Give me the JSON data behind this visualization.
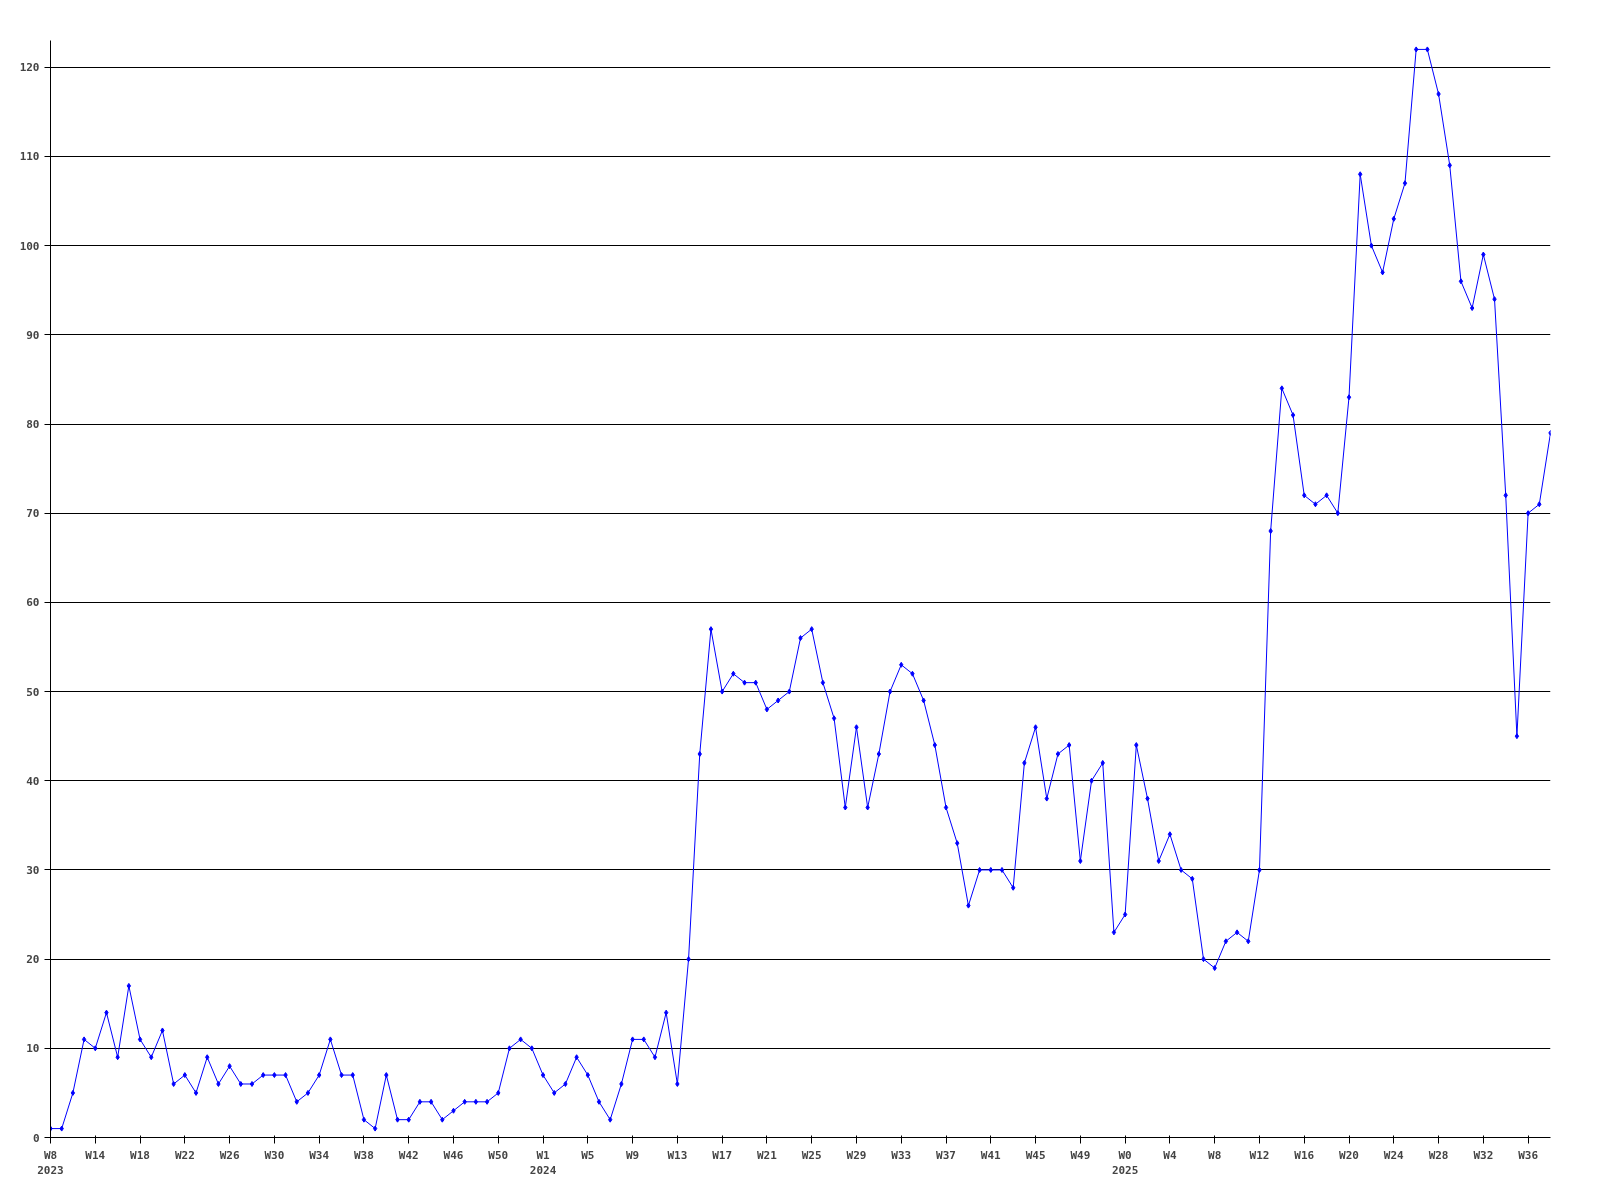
{
  "chart_data": {
    "type": "line",
    "categories": [
      "W8\n2023",
      null,
      null,
      null,
      "W14",
      null,
      null,
      null,
      "W18",
      null,
      null,
      null,
      "W22",
      null,
      null,
      null,
      "W26",
      null,
      null,
      null,
      "W30",
      null,
      null,
      null,
      "W34",
      null,
      null,
      null,
      "W38",
      null,
      null,
      null,
      "W42",
      null,
      null,
      null,
      "W46",
      null,
      null,
      null,
      "W50",
      null,
      null,
      null,
      "W1\n2024",
      null,
      null,
      null,
      "W5",
      null,
      null,
      null,
      "W9",
      null,
      null,
      null,
      "W13",
      null,
      null,
      null,
      "W17",
      null,
      null,
      null,
      "W21",
      null,
      null,
      null,
      "W25",
      null,
      null,
      null,
      "W29",
      null,
      null,
      null,
      "W33",
      null,
      null,
      null,
      "W37",
      null,
      null,
      null,
      "W41",
      null,
      null,
      null,
      "W45",
      null,
      null,
      null,
      "W49",
      null,
      null,
      null,
      "W0\n2025",
      null,
      null,
      null,
      "W4",
      null,
      null,
      null,
      "W8",
      null,
      null,
      null,
      "W12",
      null,
      null,
      null,
      "W16",
      null,
      null,
      null,
      "W20",
      null,
      null,
      null,
      "W24",
      null,
      null,
      null,
      "W28",
      null,
      null,
      null,
      "W32",
      null,
      null,
      null,
      "W36",
      null,
      null
    ],
    "series": [
      {
        "color": "#0000ff",
        "values": [
          1,
          1,
          5,
          11,
          10,
          14,
          9,
          17,
          11,
          9,
          12,
          6,
          7,
          5,
          9,
          6,
          8,
          6,
          6,
          7,
          7,
          7,
          4,
          5,
          7,
          11,
          7,
          7,
          2,
          1,
          7,
          2,
          2,
          4,
          4,
          2,
          3,
          4,
          4,
          4,
          5,
          10,
          11,
          10,
          7,
          5,
          6,
          9,
          7,
          4,
          2,
          6,
          11,
          11,
          9,
          14,
          6,
          20,
          43,
          57,
          50,
          52,
          51,
          51,
          48,
          49,
          50,
          56,
          57,
          51,
          47,
          37,
          46,
          37,
          43,
          50,
          53,
          52,
          49,
          44,
          37,
          33,
          26,
          30,
          30,
          30,
          28,
          42,
          46,
          38,
          43,
          44,
          31,
          40,
          42,
          23,
          25,
          44,
          38,
          31,
          34,
          30,
          29,
          20,
          19,
          22,
          23,
          22,
          30,
          68,
          84,
          81,
          72,
          71,
          72,
          70,
          83,
          108,
          100,
          97,
          103,
          107,
          122,
          122,
          117,
          109,
          96,
          93,
          99,
          94,
          72,
          45,
          70,
          71,
          79
        ]
      }
    ],
    "ylim": [
      0,
      123
    ],
    "yticks": [
      0,
      10,
      20,
      30,
      40,
      50,
      60,
      70,
      80,
      90,
      100,
      110,
      120
    ],
    "grid": "y",
    "marker": "diamond",
    "line_style": "solid"
  }
}
